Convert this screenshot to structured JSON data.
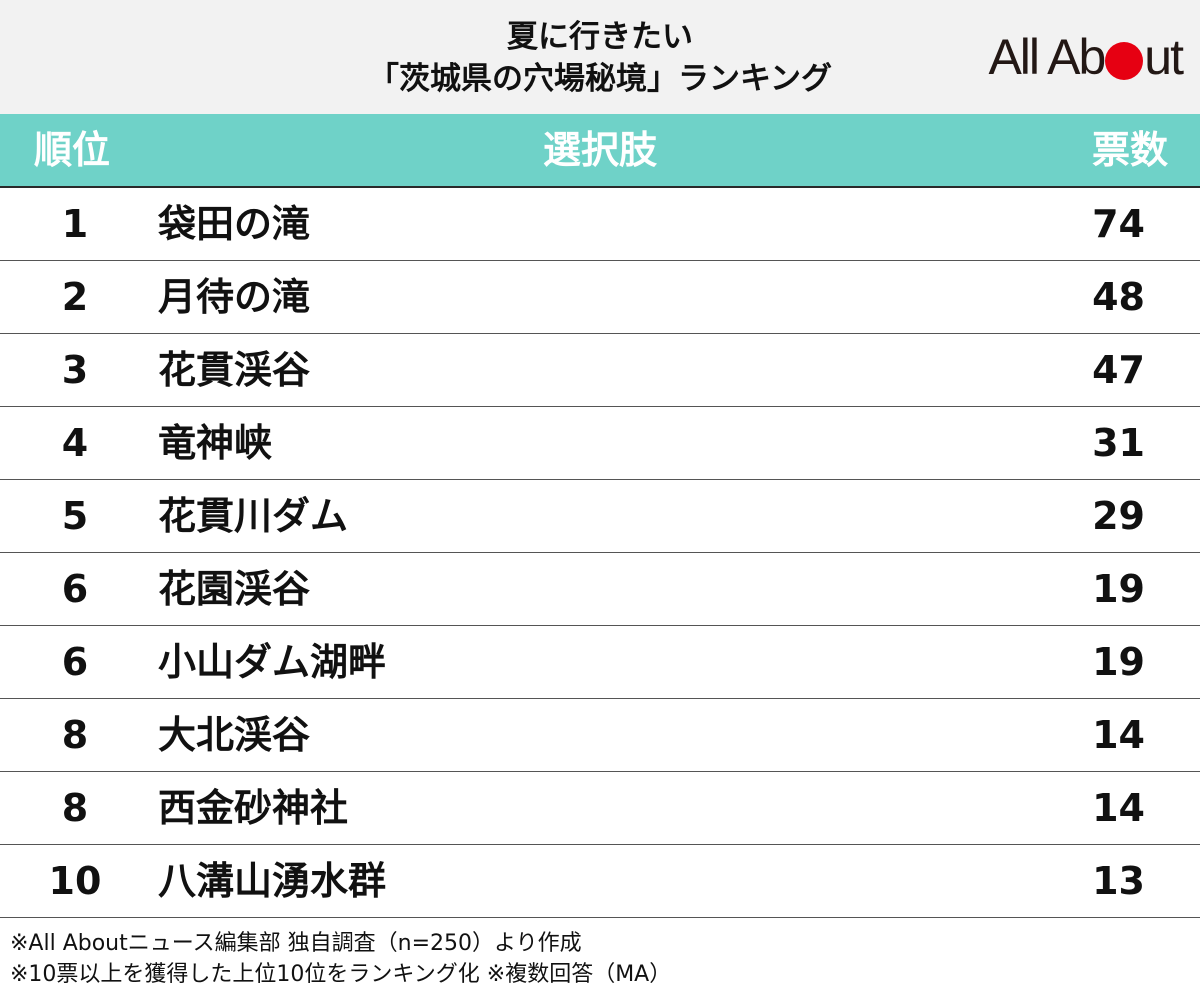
{
  "header": {
    "title_line1": "夏に行きたい",
    "title_line2": "「茨城県の穴場秘境」ランキング",
    "logo_part1": "All Ab",
    "logo_part2": "ut",
    "logo_dot_color": "#e60012"
  },
  "table": {
    "header_color": "#6fd2c8",
    "columns": {
      "rank": "順位",
      "choice": "選択肢",
      "votes": "票数"
    }
  },
  "chart_data": {
    "type": "table",
    "title": "夏に行きたい「茨城県の穴場秘境」ランキング",
    "columns": [
      "順位",
      "選択肢",
      "票数"
    ],
    "rows": [
      {
        "rank": "1",
        "name": "袋田の滝",
        "votes": "74"
      },
      {
        "rank": "2",
        "name": "月待の滝",
        "votes": "48"
      },
      {
        "rank": "3",
        "name": "花貫渓谷",
        "votes": "47"
      },
      {
        "rank": "4",
        "name": "竜神峡",
        "votes": "31"
      },
      {
        "rank": "5",
        "name": "花貫川ダム",
        "votes": "29"
      },
      {
        "rank": "6",
        "name": "花園渓谷",
        "votes": "19"
      },
      {
        "rank": "6",
        "name": "小山ダム湖畔",
        "votes": "19"
      },
      {
        "rank": "8",
        "name": "大北渓谷",
        "votes": "14"
      },
      {
        "rank": "8",
        "name": "西金砂神社",
        "votes": "14"
      },
      {
        "rank": "10",
        "name": "八溝山湧水群",
        "votes": "13"
      }
    ]
  },
  "notes": {
    "line1": "※All Aboutニュース編集部 独自調査（n=250）より作成",
    "line2": "※10票以上を獲得した上位10位をランキング化 ※複数回答（MA）"
  }
}
